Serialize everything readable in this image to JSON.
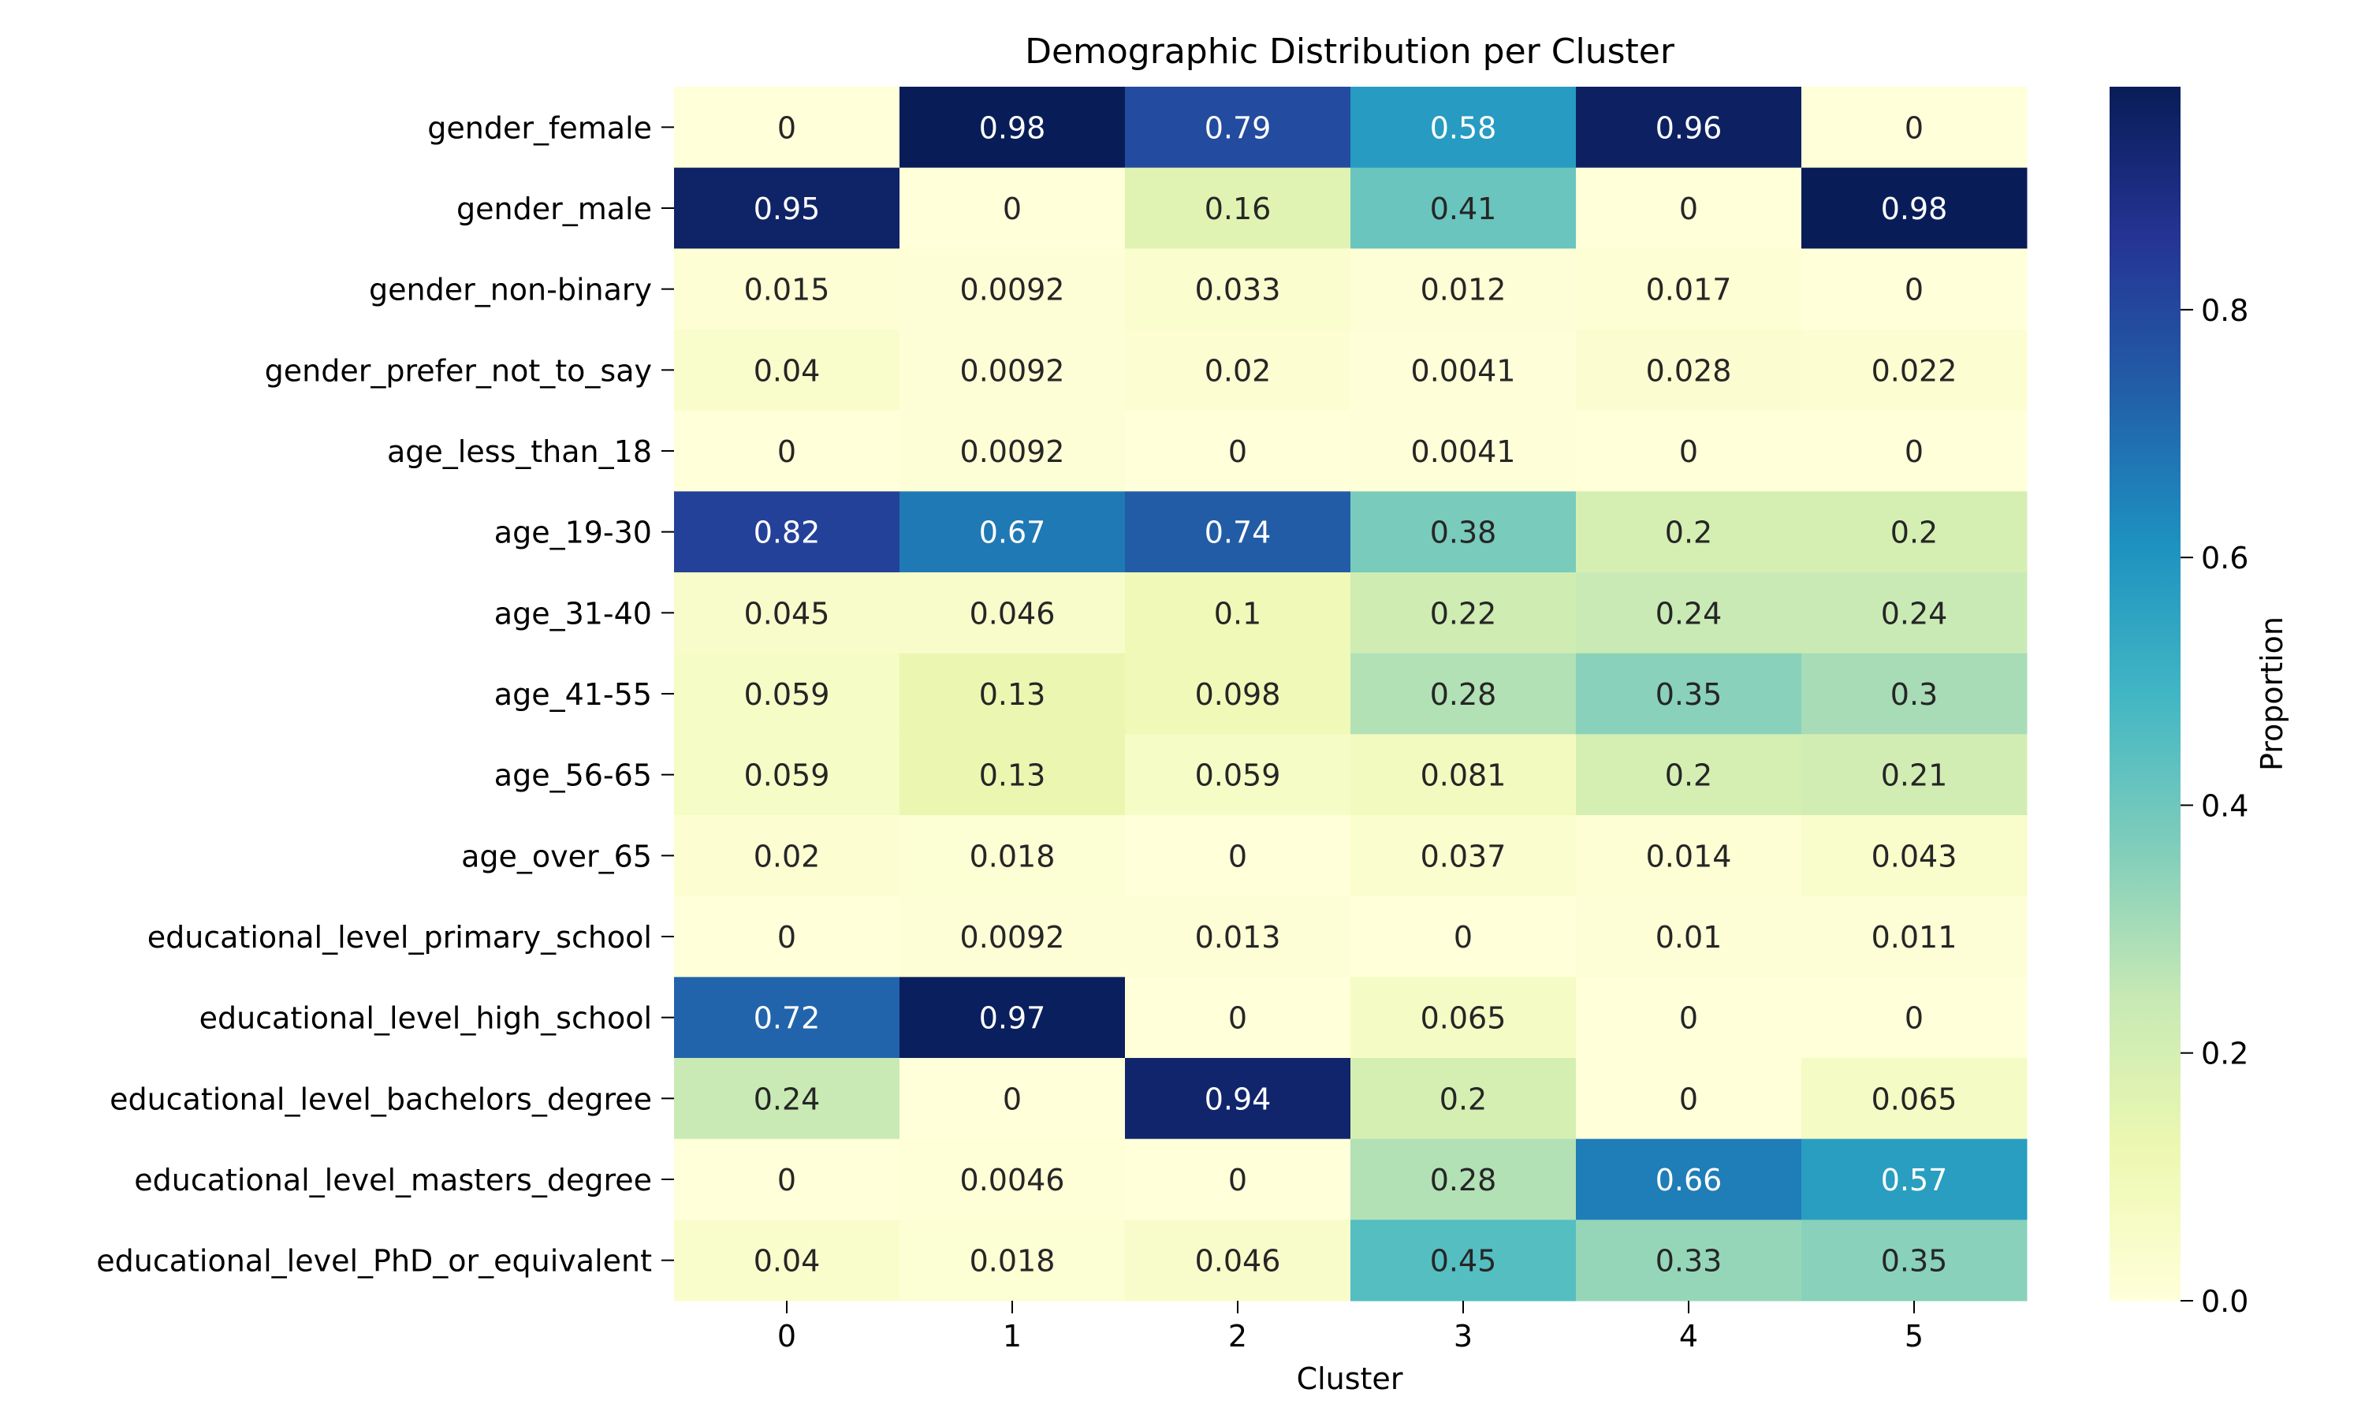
{
  "chart_data": {
    "type": "heatmap",
    "title": "Demographic Distribution per Cluster",
    "xlabel": "Cluster",
    "ylabel": "",
    "x_categories": [
      "0",
      "1",
      "2",
      "3",
      "4",
      "5"
    ],
    "y_categories": [
      "gender_female",
      "gender_male",
      "gender_non-binary",
      "gender_prefer_not_to_say",
      "age_less_than_18",
      "age_19-30",
      "age_31-40",
      "age_41-55",
      "age_56-65",
      "age_over_65",
      "educational_level_primary_school",
      "educational_level_high_school",
      "educational_level_bachelors_degree",
      "educational_level_masters_degree",
      "educational_level_PhD_or_equivalent"
    ],
    "values": [
      [
        0,
        0.98,
        0.79,
        0.58,
        0.96,
        0
      ],
      [
        0.95,
        0,
        0.16,
        0.41,
        0,
        0.98
      ],
      [
        0.015,
        0.0092,
        0.033,
        0.012,
        0.017,
        0
      ],
      [
        0.04,
        0.0092,
        0.02,
        0.0041,
        0.028,
        0.022
      ],
      [
        0,
        0.0092,
        0,
        0.0041,
        0,
        0
      ],
      [
        0.82,
        0.67,
        0.74,
        0.38,
        0.2,
        0.2
      ],
      [
        0.045,
        0.046,
        0.1,
        0.22,
        0.24,
        0.24
      ],
      [
        0.059,
        0.13,
        0.098,
        0.28,
        0.35,
        0.3
      ],
      [
        0.059,
        0.13,
        0.059,
        0.081,
        0.2,
        0.21
      ],
      [
        0.02,
        0.018,
        0,
        0.037,
        0.014,
        0.043
      ],
      [
        0,
        0.0092,
        0.013,
        0,
        0.01,
        0.011
      ],
      [
        0.72,
        0.97,
        0,
        0.065,
        0,
        0
      ],
      [
        0.24,
        0,
        0.94,
        0.2,
        0,
        0.065
      ],
      [
        0,
        0.0046,
        0,
        0.28,
        0.66,
        0.57
      ],
      [
        0.04,
        0.018,
        0.046,
        0.45,
        0.33,
        0.35
      ]
    ],
    "colormap": "YlGnBu",
    "vmin": 0,
    "vmax": 0.98,
    "colorbar": {
      "label": "Proportion",
      "ticks": [
        0.0,
        0.2,
        0.4,
        0.6,
        0.8
      ],
      "tick_labels": [
        "0.0",
        "0.2",
        "0.4",
        "0.6",
        "0.8"
      ]
    }
  }
}
